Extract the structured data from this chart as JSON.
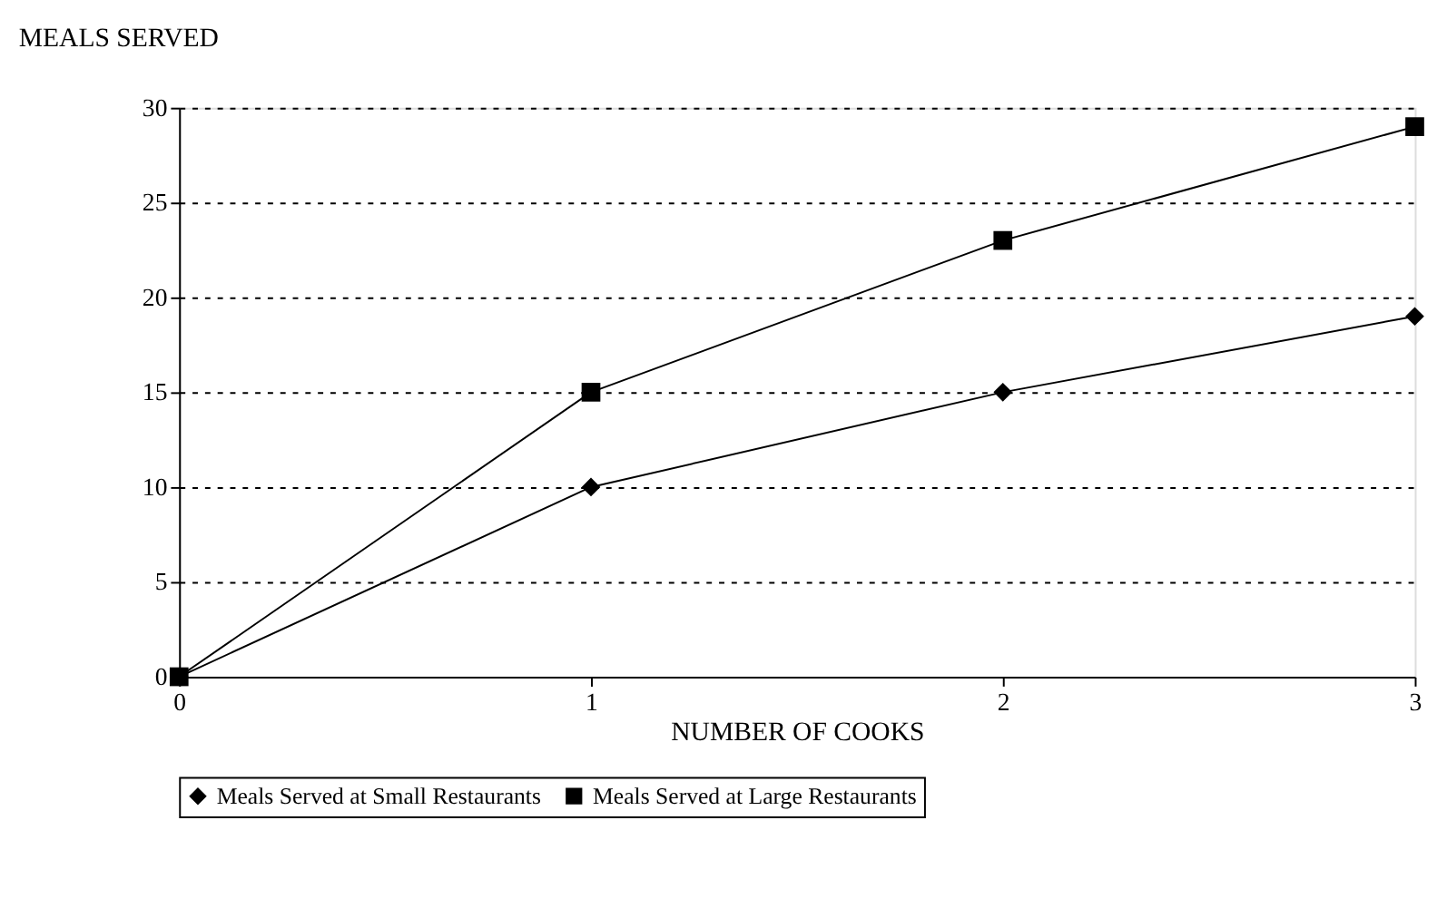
{
  "chart_data": {
    "type": "line",
    "ylabel": "MEALS SERVED",
    "xlabel": "NUMBER OF COOKS",
    "x": [
      0,
      1,
      2,
      3
    ],
    "series": [
      {
        "name": "Meals Served at Small Restaurants",
        "color": "#000000",
        "values": [
          0,
          10,
          15,
          19
        ],
        "marker": "diamond"
      },
      {
        "name": "Meals Served at Large Restaurants",
        "color": "#000000",
        "values": [
          0,
          15,
          23,
          29
        ],
        "marker": "square"
      }
    ],
    "xlim": [
      0,
      3
    ],
    "xticks": [
      0,
      1,
      2,
      3
    ],
    "ylim": [
      0,
      30
    ],
    "yticks": [
      0,
      5,
      10,
      15,
      20,
      25,
      30
    ],
    "grid": "y",
    "legend": "bottom",
    "line_style": "solid"
  }
}
